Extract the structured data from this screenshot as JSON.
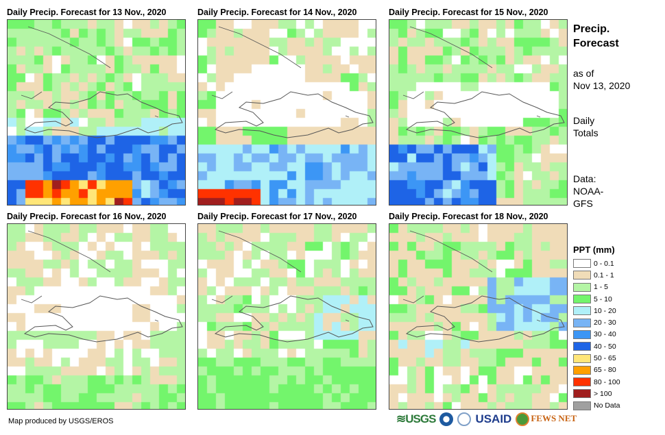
{
  "panels": [
    {
      "title": "Daily Precip. Forecast for 13 Nov., 2020"
    },
    {
      "title": "Daily Precip. Forecast for 14 Nov., 2020"
    },
    {
      "title": "Daily Precip. Forecast for 15 Nov., 2020"
    },
    {
      "title": "Daily Precip. Forecast for 16 Nov., 2020"
    },
    {
      "title": "Daily Precip. Forecast for 17 Nov., 2020"
    },
    {
      "title": "Daily Precip. Forecast for 18 Nov., 2020"
    }
  ],
  "side": {
    "title1": "Precip.",
    "title2": "Forecast",
    "asof1": "as of",
    "asof2": "Nov 13, 2020",
    "daily1": "Daily",
    "daily2": "Totals",
    "data1": "Data:",
    "data2": "NOAA-",
    "data3": "GFS"
  },
  "legend": {
    "title": "PPT (mm)",
    "items": [
      {
        "label": "0 - 0.1",
        "color": "#ffffff"
      },
      {
        "label": "0.1 - 1",
        "color": "#f0dcb8"
      },
      {
        "label": "1 - 5",
        "color": "#b4f5a5"
      },
      {
        "label": "5 - 10",
        "color": "#73f56c"
      },
      {
        "label": "10 - 20",
        "color": "#b0f0f8"
      },
      {
        "label": "20 - 30",
        "color": "#78b4f5"
      },
      {
        "label": "30 - 40",
        "color": "#3c96f5"
      },
      {
        "label": "40 - 50",
        "color": "#1e64e6"
      },
      {
        "label": "50 - 65",
        "color": "#ffe678"
      },
      {
        "label": "65 - 80",
        "color": "#ffa000"
      },
      {
        "label": "80 - 100",
        "color": "#ff3200"
      },
      {
        "label": "> 100",
        "color": "#a01e1e"
      },
      {
        "label": "No Data",
        "color": "#a0a0a0"
      }
    ]
  },
  "credit": "Map produced by USGS/EROS",
  "logos": {
    "usgs": "USGS",
    "usaid": "USAID",
    "fews": "FEWS NET"
  }
}
